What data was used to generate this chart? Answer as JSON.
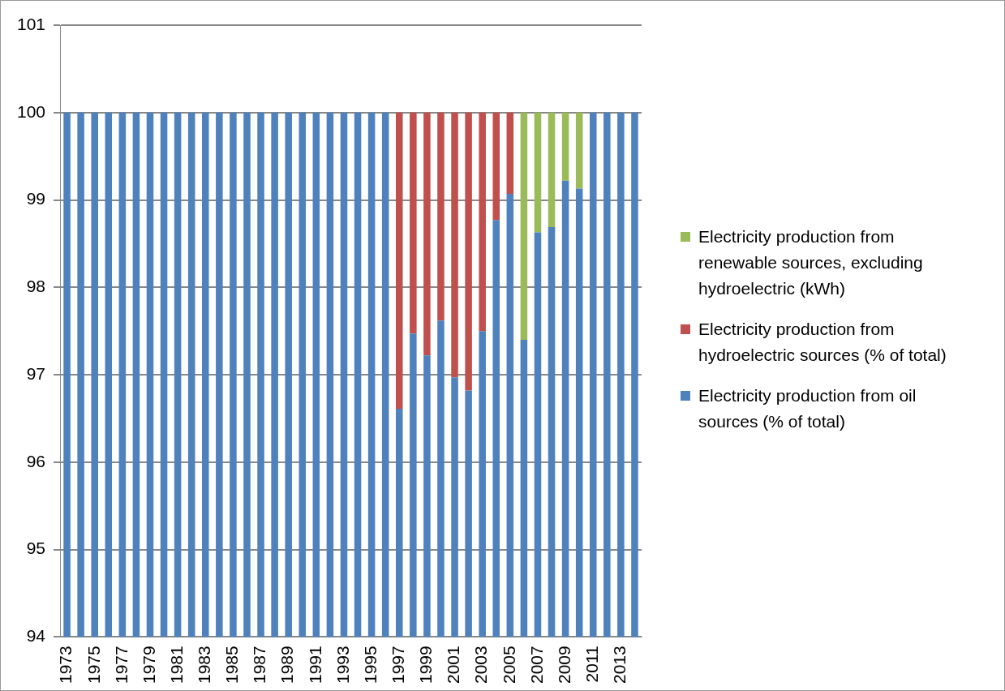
{
  "chart_data": {
    "type": "bar",
    "legend": "right",
    "grid": "y",
    "categories": [
      "1973",
      null,
      "1975",
      null,
      "1977",
      null,
      "1979",
      null,
      "1981",
      null,
      "1983",
      null,
      "1985",
      null,
      "1987",
      null,
      "1989",
      null,
      "1991",
      null,
      "1993",
      null,
      "1995",
      null,
      "1997",
      null,
      "1999",
      null,
      "2001",
      null,
      "2003",
      null,
      "2005",
      null,
      "2007",
      null,
      "2009",
      null,
      "2011",
      null,
      "2013",
      null
    ],
    "ylim": [
      94,
      101
    ],
    "yticks": [
      94,
      95,
      96,
      97,
      98,
      99,
      100,
      101
    ],
    "series": [
      {
        "name": "Electricity production from oil sources (% of total)",
        "color": "#4f81bd",
        "values": [
          100,
          100,
          100,
          100,
          100,
          100,
          100,
          100,
          100,
          100,
          100,
          100,
          100,
          100,
          100,
          100,
          100,
          100,
          100,
          100,
          100,
          100,
          100,
          100,
          96.61,
          97.47,
          97.22,
          97.62,
          96.97,
          96.82,
          97.5,
          98.77,
          99.07,
          97.4,
          98.63,
          98.69,
          99.22,
          99.13,
          100,
          100,
          100,
          100
        ]
      },
      {
        "name": "Electricity production from hydroelectric sources (% of total)",
        "color": "#c0504d",
        "values": [
          null,
          null,
          null,
          null,
          null,
          null,
          null,
          null,
          null,
          null,
          null,
          null,
          null,
          null,
          null,
          null,
          null,
          null,
          null,
          null,
          null,
          null,
          null,
          null,
          3.39,
          2.53,
          2.78,
          2.38,
          3.03,
          3.18,
          2.5,
          1.23,
          0.93,
          null,
          null,
          null,
          null,
          null,
          null,
          null,
          null,
          null
        ],
        "base": [
          null,
          null,
          null,
          null,
          null,
          null,
          null,
          null,
          null,
          null,
          null,
          null,
          null,
          null,
          null,
          null,
          null,
          null,
          null,
          null,
          null,
          null,
          null,
          null,
          96.61,
          97.47,
          97.22,
          97.62,
          96.97,
          96.82,
          97.5,
          98.77,
          99.07,
          null,
          null,
          null,
          null,
          null,
          null,
          null,
          null,
          null
        ]
      },
      {
        "name": "Electricity production from renewable sources, excluding hydroelectric (kWh)",
        "color": "#9bbb59",
        "values": [
          null,
          null,
          null,
          null,
          null,
          null,
          null,
          null,
          null,
          null,
          null,
          null,
          null,
          null,
          null,
          null,
          null,
          null,
          null,
          null,
          null,
          null,
          null,
          null,
          null,
          null,
          null,
          null,
          null,
          null,
          null,
          null,
          null,
          2.6,
          1.37,
          1.31,
          0.78,
          0.87,
          null,
          null,
          null,
          null
        ],
        "base": [
          null,
          null,
          null,
          null,
          null,
          null,
          null,
          null,
          null,
          null,
          null,
          null,
          null,
          null,
          null,
          null,
          null,
          null,
          null,
          null,
          null,
          null,
          null,
          null,
          null,
          null,
          null,
          null,
          null,
          null,
          null,
          null,
          null,
          97.4,
          98.63,
          98.69,
          99.22,
          99.13,
          null,
          null,
          null,
          null
        ]
      }
    ]
  }
}
